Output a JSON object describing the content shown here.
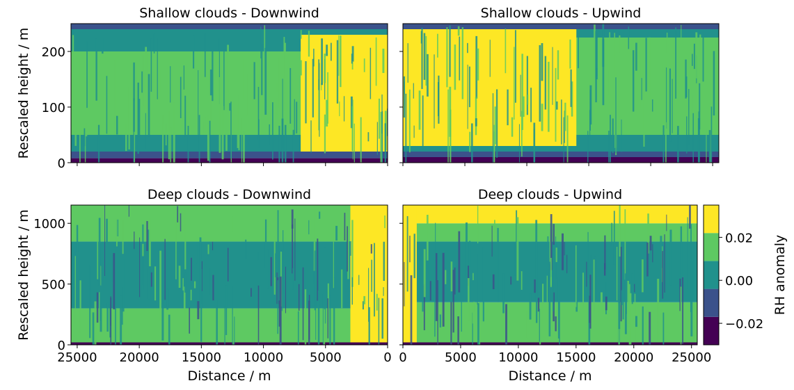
{
  "colors": {
    "levels": [
      "#440154",
      "#3b528b",
      "#21918c",
      "#5ec962",
      "#fde725"
    ],
    "axis": "#000000",
    "background": "#ffffff"
  },
  "chart_data": [
    {
      "type": "heatmap",
      "title": "Shallow clouds - Downwind",
      "xlabel": "",
      "ylabel": "Rescaled height / m",
      "xlim": [
        25500,
        0
      ],
      "ylim": [
        0,
        250
      ],
      "xticks": [
        25000,
        20000,
        15000,
        10000,
        5000,
        0
      ],
      "yticks": [
        0,
        100,
        200
      ],
      "show_x_ticklabels": false,
      "show_y_ticklabels": true,
      "bands": [
        {
          "level": 0,
          "y_from": 0,
          "y_to": 8
        },
        {
          "level": 1,
          "y_from": 8,
          "y_to": 20
        },
        {
          "level": 2,
          "y_from": 20,
          "y_to": 50
        },
        {
          "level": 3,
          "y_from": 50,
          "y_to": 200
        },
        {
          "level": 2,
          "y_from": 200,
          "y_to": 240
        },
        {
          "level": 1,
          "y_from": 240,
          "y_to": 250
        }
      ],
      "core": {
        "level": 4,
        "x_from": 7000,
        "x_to": 0,
        "y_from": 20,
        "y_to": 230
      }
    },
    {
      "type": "heatmap",
      "title": "Shallow clouds - Upwind",
      "xlabel": "",
      "ylabel": "",
      "xlim": [
        0,
        25500
      ],
      "ylim": [
        0,
        250
      ],
      "xticks": [
        0,
        5000,
        10000,
        15000,
        20000,
        25000
      ],
      "yticks": [
        0,
        100,
        200
      ],
      "show_x_ticklabels": false,
      "show_y_ticklabels": false,
      "bands": [
        {
          "level": 0,
          "y_from": 0,
          "y_to": 10
        },
        {
          "level": 1,
          "y_from": 10,
          "y_to": 20
        },
        {
          "level": 2,
          "y_from": 20,
          "y_to": 50
        },
        {
          "level": 3,
          "y_from": 50,
          "y_to": 225
        },
        {
          "level": 2,
          "y_from": 225,
          "y_to": 240
        },
        {
          "level": 1,
          "y_from": 240,
          "y_to": 250
        }
      ],
      "core": {
        "level": 4,
        "x_from": 0,
        "x_to": 14000,
        "y_from": 30,
        "y_to": 240
      }
    },
    {
      "type": "heatmap",
      "title": "Deep clouds - Downwind",
      "xlabel": "Distance / m",
      "ylabel": "Rescaled height / m",
      "xlim": [
        25500,
        0
      ],
      "ylim": [
        0,
        1150
      ],
      "xticks": [
        25000,
        20000,
        15000,
        10000,
        5000,
        0
      ],
      "yticks": [
        0,
        500,
        1000
      ],
      "show_x_ticklabels": true,
      "show_y_ticklabels": true,
      "bands": [
        {
          "level": 0,
          "y_from": 0,
          "y_to": 20
        },
        {
          "level": 3,
          "y_from": 20,
          "y_to": 300
        },
        {
          "level": 2,
          "y_from": 300,
          "y_to": 850
        },
        {
          "level": 3,
          "y_from": 850,
          "y_to": 1150
        }
      ],
      "core": {
        "level": 4,
        "x_from": 3000,
        "x_to": 0,
        "y_from": 20,
        "y_to": 1150
      }
    },
    {
      "type": "heatmap",
      "title": "Deep clouds - Upwind",
      "xlabel": "Distance / m",
      "ylabel": "",
      "xlim": [
        0,
        25500
      ],
      "ylim": [
        0,
        1150
      ],
      "xticks": [
        0,
        5000,
        10000,
        15000,
        20000,
        25000
      ],
      "yticks": [
        0,
        500,
        1000
      ],
      "show_x_ticklabels": true,
      "show_y_ticklabels": false,
      "bands": [
        {
          "level": 0,
          "y_from": 0,
          "y_to": 20
        },
        {
          "level": 3,
          "y_from": 20,
          "y_to": 350
        },
        {
          "level": 2,
          "y_from": 350,
          "y_to": 850
        },
        {
          "level": 3,
          "y_from": 850,
          "y_to": 1000
        },
        {
          "level": 4,
          "y_from": 1000,
          "y_to": 1150
        }
      ],
      "core": {
        "level": 4,
        "x_from": 0,
        "x_to": 1200,
        "y_from": 20,
        "y_to": 1150
      }
    }
  ],
  "colorbar": {
    "label": "RH anomaly",
    "ticks": [
      {
        "value": -0.02,
        "label": "−0.02"
      },
      {
        "value": 0.0,
        "label": "0.00"
      },
      {
        "value": 0.02,
        "label": "0.02"
      }
    ],
    "range": [
      -0.03,
      0.035
    ]
  }
}
